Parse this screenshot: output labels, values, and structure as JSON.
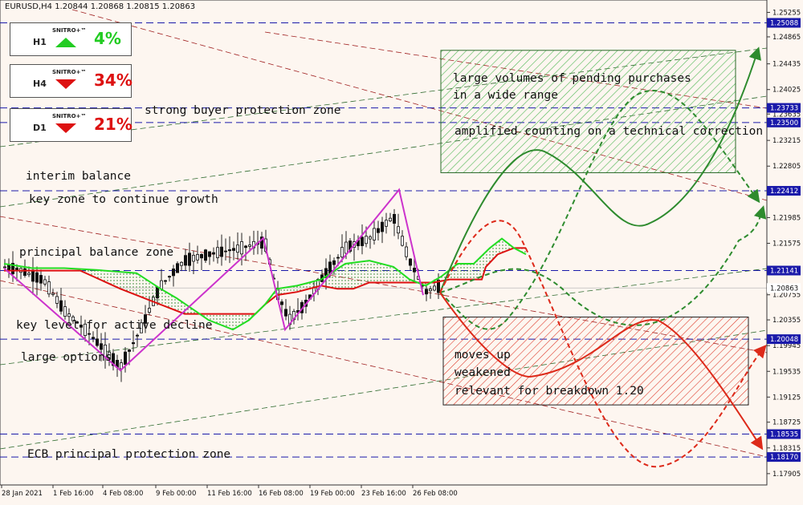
{
  "header": {
    "title": "EURUSD,H4  1.20844 1.20868 1.20815 1.20863"
  },
  "panels": [
    {
      "timeframe": "H1",
      "brand": "SNITRO+™",
      "direction": "up",
      "percent": "4%",
      "color": "#22cc22"
    },
    {
      "timeframe": "H4",
      "brand": "SNITRO+™",
      "direction": "down",
      "percent": "34%",
      "color": "#dd1111"
    },
    {
      "timeframe": "D1",
      "brand": "SNITRO+™",
      "direction": "down",
      "percent": "21%",
      "color": "#dd1111"
    }
  ],
  "annotations": {
    "strong_buyer": "strong buyer protection zone",
    "interim": "interim balance",
    "key_zone": "key zone to continue growth",
    "principal": "principal balance zone",
    "key_level": "key level for active decline",
    "large_options": "large options",
    "ecb": "ECB principal protection zone",
    "green_box_1": "large volumes of pending purchases",
    "green_box_2": "in a wide range",
    "green_box_3": "amplified counting on a technical correction",
    "red_box_1": "moves up",
    "red_box_2": "weakened",
    "red_box_3": "relevant for breakdown 1.20"
  },
  "chart_data": {
    "type": "line",
    "symbol": "EURUSD",
    "timeframe": "H4",
    "y_ticks": [
      "1.25255",
      "1.24865",
      "1.24435",
      "1.24025",
      "1.23635",
      "1.23215",
      "1.22805",
      "1.22395",
      "1.21985",
      "1.21575",
      "1.21165",
      "1.20755",
      "1.20355",
      "1.19945",
      "1.19535",
      "1.19125",
      "1.18725",
      "1.18315",
      "1.17905"
    ],
    "x_ticks": [
      "28 Jan 2021",
      "1 Feb 16:00",
      "4 Feb 08:00",
      "9 Feb 00:00",
      "11 Feb 16:00",
      "16 Feb 08:00",
      "19 Feb 00:00",
      "23 Feb 16:00",
      "26 Feb 08:00"
    ],
    "ylim": [
      1.1775,
      1.2535
    ],
    "level_labels": [
      "1.25088",
      "1.23733",
      "1.23500",
      "1.22412",
      "1.21141",
      "1.20863",
      "1.20048",
      "1.18535",
      "1.18170"
    ],
    "levels": [
      1.25088,
      1.23733,
      1.235,
      1.22412,
      1.21141,
      1.20048,
      1.18535,
      1.1817
    ],
    "current_price": "1.20863",
    "current_price_value": 1.20863,
    "zigzag": [
      1.2118,
      1.1955,
      1.2166,
      1.202,
      1.2243,
      1.2075
    ],
    "zones": {
      "buy": [
        1.2465,
        1.227
      ],
      "sell": [
        1.204,
        1.19
      ]
    },
    "colors": {
      "zigzag": "#cc33cc",
      "kijun": "#dd1111",
      "tenkan": "#22dd22",
      "levels": "#1a1aaa",
      "buy_zone": "#3cb043",
      "sell_zone": "#e04030"
    }
  }
}
